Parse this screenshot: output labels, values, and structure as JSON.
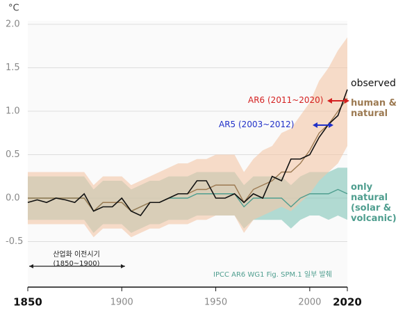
{
  "chart_data": {
    "type": "line",
    "y_label": "°C",
    "x": [
      1850,
      1855,
      1860,
      1865,
      1870,
      1875,
      1880,
      1885,
      1890,
      1895,
      1900,
      1905,
      1910,
      1915,
      1920,
      1925,
      1930,
      1935,
      1940,
      1945,
      1950,
      1955,
      1960,
      1965,
      1970,
      1975,
      1980,
      1985,
      1990,
      1995,
      2000,
      2005,
      2010,
      2015,
      2020
    ],
    "series": [
      {
        "name": "observed",
        "color": "#111111",
        "values": [
          -0.05,
          -0.02,
          -0.05,
          0.0,
          -0.02,
          -0.05,
          0.05,
          -0.15,
          -0.1,
          -0.1,
          0.0,
          -0.15,
          -0.2,
          -0.05,
          -0.05,
          0.0,
          0.05,
          0.05,
          0.2,
          0.2,
          0.0,
          0.0,
          0.05,
          -0.05,
          0.05,
          0.0,
          0.25,
          0.2,
          0.45,
          0.45,
          0.5,
          0.7,
          0.85,
          0.95,
          1.25
        ]
      },
      {
        "name": "human & natural",
        "color": "#9c7a52",
        "band_color": "#f3c7a6",
        "values": [
          0.0,
          0.0,
          0.0,
          0.0,
          0.0,
          0.0,
          0.0,
          -0.15,
          -0.05,
          -0.05,
          -0.05,
          -0.15,
          -0.1,
          -0.05,
          -0.05,
          0.0,
          0.05,
          0.05,
          0.1,
          0.1,
          0.15,
          0.15,
          0.15,
          -0.05,
          0.1,
          0.15,
          0.2,
          0.3,
          0.3,
          0.4,
          0.55,
          0.75,
          0.85,
          1.0,
          1.15
        ],
        "upper": [
          0.3,
          0.3,
          0.3,
          0.3,
          0.3,
          0.3,
          0.3,
          0.15,
          0.25,
          0.25,
          0.25,
          0.15,
          0.2,
          0.25,
          0.3,
          0.35,
          0.4,
          0.4,
          0.45,
          0.45,
          0.5,
          0.5,
          0.5,
          0.3,
          0.45,
          0.55,
          0.6,
          0.75,
          0.8,
          0.95,
          1.1,
          1.35,
          1.5,
          1.7,
          1.85
        ],
        "lower": [
          -0.3,
          -0.3,
          -0.3,
          -0.3,
          -0.3,
          -0.3,
          -0.3,
          -0.45,
          -0.35,
          -0.35,
          -0.35,
          -0.45,
          -0.4,
          -0.35,
          -0.35,
          -0.3,
          -0.3,
          -0.3,
          -0.25,
          -0.25,
          -0.2,
          -0.2,
          -0.2,
          -0.4,
          -0.25,
          -0.2,
          -0.15,
          -0.1,
          -0.15,
          -0.05,
          0.05,
          0.2,
          0.3,
          0.4,
          0.6
        ]
      },
      {
        "name": "only natural (solar & volcanic)",
        "color": "#4f9e8f",
        "band_color": "#80c4b7",
        "values": [
          0.0,
          0.0,
          0.0,
          0.0,
          0.0,
          0.0,
          0.0,
          -0.15,
          -0.05,
          -0.05,
          -0.05,
          -0.15,
          -0.1,
          -0.05,
          -0.05,
          0.0,
          0.0,
          0.0,
          0.05,
          0.05,
          0.05,
          0.05,
          0.05,
          -0.1,
          0.0,
          0.0,
          0.0,
          0.0,
          -0.1,
          0.0,
          0.05,
          0.05,
          0.05,
          0.1,
          0.05
        ],
        "upper": [
          0.25,
          0.25,
          0.25,
          0.25,
          0.25,
          0.25,
          0.25,
          0.1,
          0.2,
          0.2,
          0.2,
          0.1,
          0.15,
          0.2,
          0.2,
          0.25,
          0.25,
          0.25,
          0.3,
          0.3,
          0.3,
          0.3,
          0.3,
          0.15,
          0.25,
          0.25,
          0.25,
          0.25,
          0.15,
          0.25,
          0.3,
          0.3,
          0.3,
          0.35,
          0.35
        ],
        "lower": [
          -0.25,
          -0.25,
          -0.25,
          -0.25,
          -0.25,
          -0.25,
          -0.25,
          -0.4,
          -0.3,
          -0.3,
          -0.3,
          -0.4,
          -0.35,
          -0.3,
          -0.3,
          -0.25,
          -0.25,
          -0.25,
          -0.2,
          -0.2,
          -0.2,
          -0.2,
          -0.2,
          -0.35,
          -0.25,
          -0.25,
          -0.25,
          -0.25,
          -0.35,
          -0.25,
          -0.2,
          -0.2,
          -0.25,
          -0.2,
          -0.25
        ]
      }
    ],
    "xlim": [
      1850,
      2020
    ],
    "xticks": [
      1850,
      1900,
      1950,
      2000,
      2020
    ],
    "ylim": [
      -1,
      2
    ],
    "yticks": [
      {
        "value": 2,
        "label": "2.0"
      },
      1.5,
      {
        "value": 1,
        "label": "1.0"
      },
      0.5,
      {
        "value": 0,
        "label": "0.0"
      },
      -0.5
    ],
    "grid": true,
    "annotations": [
      "AR6 (2011~2020)",
      "AR5 (2003~2012)",
      "산업화 이전시기 (1850~1900)",
      "IPCC AR6 WG1 Fig. SPM.1 일부 발췌"
    ]
  }
}
